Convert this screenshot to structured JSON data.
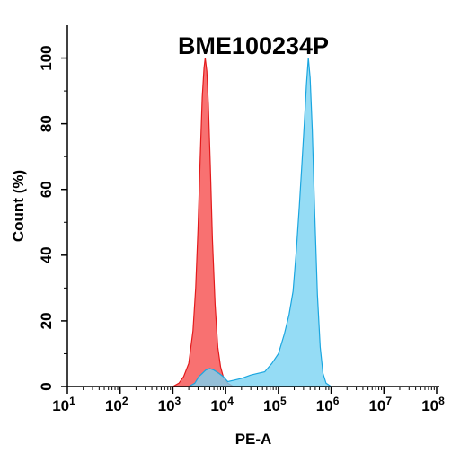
{
  "chart_data": {
    "type": "area",
    "title": "BME100234P",
    "xlabel": "PE-A",
    "ylabel": "Count  (%)",
    "x_scale": "log",
    "xlim": [
      10,
      100000000
    ],
    "ylim": [
      0,
      110
    ],
    "x_ticks": [
      {
        "base": "10",
        "exp": "1"
      },
      {
        "base": "10",
        "exp": "2"
      },
      {
        "base": "10",
        "exp": "3"
      },
      {
        "base": "10",
        "exp": "4"
      },
      {
        "base": "10",
        "exp": "5"
      },
      {
        "base": "10",
        "exp": "6"
      },
      {
        "base": "10",
        "exp": "7"
      },
      {
        "base": "10",
        "exp": "8"
      }
    ],
    "y_ticks": [
      "0",
      "20",
      "40",
      "60",
      "80",
      "100"
    ],
    "grid": false,
    "series": [
      {
        "fill": "#f87171",
        "stroke": "#e31a1c",
        "points": [
          [
            1000,
            0
          ],
          [
            1300,
            1
          ],
          [
            1600,
            3
          ],
          [
            2000,
            7
          ],
          [
            2400,
            17
          ],
          [
            2700,
            30
          ],
          [
            3000,
            48
          ],
          [
            3300,
            70
          ],
          [
            3600,
            88
          ],
          [
            3900,
            97
          ],
          [
            4100,
            100
          ],
          [
            4400,
            96
          ],
          [
            4700,
            86
          ],
          [
            5100,
            68
          ],
          [
            5600,
            45
          ],
          [
            6300,
            25
          ],
          [
            7100,
            12
          ],
          [
            8000,
            6
          ],
          [
            9000,
            3
          ],
          [
            11000,
            1
          ],
          [
            14000,
            0
          ]
        ]
      },
      {
        "fill": "#7ad3f3",
        "stroke": "#1aa6e0",
        "points": [
          [
            2000,
            0
          ],
          [
            2600,
            1
          ],
          [
            3100,
            3
          ],
          [
            3600,
            4
          ],
          [
            4200,
            5
          ],
          [
            5000,
            5.5
          ],
          [
            6000,
            5
          ],
          [
            7500,
            4
          ],
          [
            9000,
            3
          ],
          [
            11000,
            1.5
          ],
          [
            15000,
            2
          ],
          [
            20000,
            2.5
          ],
          [
            30000,
            3.5
          ],
          [
            40000,
            4
          ],
          [
            55000,
            4.5
          ],
          [
            75000,
            7
          ],
          [
            100000,
            10
          ],
          [
            130000,
            16
          ],
          [
            160000,
            22
          ],
          [
            190000,
            29
          ],
          [
            220000,
            42
          ],
          [
            250000,
            55
          ],
          [
            280000,
            68
          ],
          [
            310000,
            80
          ],
          [
            340000,
            92
          ],
          [
            370000,
            100
          ],
          [
            400000,
            94
          ],
          [
            440000,
            78
          ],
          [
            490000,
            52
          ],
          [
            550000,
            28
          ],
          [
            620000,
            12
          ],
          [
            700000,
            4
          ],
          [
            800000,
            1
          ],
          [
            1000000,
            0
          ]
        ]
      }
    ]
  }
}
